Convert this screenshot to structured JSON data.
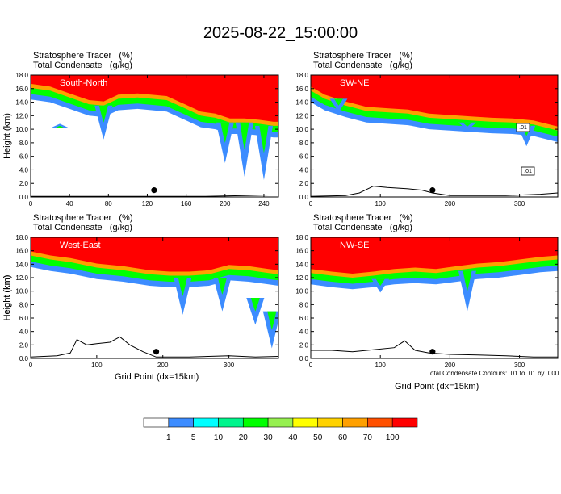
{
  "figure": {
    "title": "2025-08-22_15:00:00",
    "xtitle": "Grid Point (dx=15km)",
    "footnote": "Total Condensate Contours: .01 to .01 by .000",
    "panel_header_line1": "Stratosphere Tracer   (%)",
    "panel_header_line2": "Total Condensate   (g/kg)",
    "contour_labels": [
      ".01",
      ".01"
    ]
  },
  "chart_data": [
    {
      "type": "heatmap",
      "panel": "South-North",
      "label": "South-North",
      "ylabel": "Height (km)",
      "xlim": [
        0,
        255
      ],
      "ylim": [
        0,
        18
      ],
      "xticks": [
        0,
        40,
        80,
        120,
        160,
        200,
        240
      ],
      "yticks": [
        "0.0",
        "2.0",
        "4.0",
        "6.0",
        "8.0",
        "10.0",
        "12.0",
        "14.0",
        "16.0",
        "18.0"
      ],
      "tracer_base_km": [
        [
          0,
          15.6
        ],
        [
          20,
          15.2
        ],
        [
          40,
          14.2
        ],
        [
          60,
          13.2
        ],
        [
          75,
          13.0
        ],
        [
          90,
          14.0
        ],
        [
          110,
          14.2
        ],
        [
          140,
          13.8
        ],
        [
          160,
          12.5
        ],
        [
          175,
          11.5
        ],
        [
          190,
          11.2
        ],
        [
          205,
          10.5
        ],
        [
          220,
          10.5
        ],
        [
          235,
          10.3
        ],
        [
          250,
          10.0
        ],
        [
          255,
          10.0
        ]
      ],
      "intrusions": [
        {
          "x": 30,
          "top_km": 10.2,
          "bottom_km": 10.8
        },
        {
          "x": 75,
          "top_km": 13.5,
          "bottom_km": 8.5
        },
        {
          "x": 200,
          "top_km": 11.0,
          "bottom_km": 5.0
        },
        {
          "x": 220,
          "top_km": 11.0,
          "bottom_km": 3.0
        },
        {
          "x": 240,
          "top_km": 10.5,
          "bottom_km": 2.5
        }
      ],
      "terrain_km": [
        [
          0,
          0.1
        ],
        [
          60,
          0.1
        ],
        [
          120,
          0.1
        ],
        [
          180,
          0.1
        ],
        [
          220,
          0.2
        ],
        [
          245,
          0.3
        ],
        [
          255,
          0.3
        ]
      ],
      "marker": {
        "x": 127,
        "y_km": 1.0
      }
    },
    {
      "type": "heatmap",
      "panel": "SW-NE",
      "label": "SW-NE",
      "ylabel": "",
      "xlim": [
        0,
        355
      ],
      "ylim": [
        0,
        18
      ],
      "xticks": [
        0,
        100,
        200,
        300
      ],
      "yticks": [
        "0.0",
        "2.0",
        "4.0",
        "6.0",
        "8.0",
        "10.0",
        "12.0",
        "14.0",
        "16.0",
        "18.0"
      ],
      "tracer_base_km": [
        [
          0,
          15.2
        ],
        [
          20,
          14.0
        ],
        [
          50,
          13.0
        ],
        [
          80,
          12.2
        ],
        [
          110,
          12.0
        ],
        [
          140,
          11.8
        ],
        [
          170,
          11.2
        ],
        [
          200,
          11.0
        ],
        [
          230,
          10.8
        ],
        [
          260,
          10.6
        ],
        [
          290,
          10.5
        ],
        [
          320,
          10.2
        ],
        [
          355,
          9.3
        ]
      ],
      "intrusions": [
        {
          "x": 40,
          "top_km": 14.5,
          "bottom_km": 12.5
        },
        {
          "x": 225,
          "top_km": 11.0,
          "bottom_km": 9.8
        },
        {
          "x": 310,
          "top_km": 10.5,
          "bottom_km": 7.5
        }
      ],
      "terrain_km": [
        [
          0,
          0.1
        ],
        [
          50,
          0.2
        ],
        [
          70,
          0.6
        ],
        [
          90,
          1.6
        ],
        [
          110,
          1.4
        ],
        [
          140,
          1.2
        ],
        [
          160,
          1.0
        ],
        [
          175,
          0.6
        ],
        [
          200,
          0.2
        ],
        [
          280,
          0.2
        ],
        [
          330,
          0.4
        ],
        [
          355,
          0.6
        ]
      ],
      "marker": {
        "x": 175,
        "y_km": 1.0
      }
    },
    {
      "type": "heatmap",
      "panel": "West-East",
      "label": "West-East",
      "ylabel": "Height (km)",
      "xlim": [
        0,
        375
      ],
      "ylim": [
        0,
        18
      ],
      "xticks": [
        0,
        100,
        200,
        300
      ],
      "yticks": [
        "0.0",
        "2.0",
        "4.0",
        "6.0",
        "8.0",
        "10.0",
        "12.0",
        "14.0",
        "16.0",
        "18.0"
      ],
      "tracer_base_km": [
        [
          0,
          14.8
        ],
        [
          30,
          14.2
        ],
        [
          60,
          13.8
        ],
        [
          100,
          13.0
        ],
        [
          140,
          12.6
        ],
        [
          180,
          12.0
        ],
        [
          210,
          11.8
        ],
        [
          240,
          11.8
        ],
        [
          270,
          12.0
        ],
        [
          300,
          12.8
        ],
        [
          330,
          12.6
        ],
        [
          360,
          12.2
        ],
        [
          375,
          12.0
        ]
      ],
      "intrusions": [
        {
          "x": 230,
          "top_km": 12.0,
          "bottom_km": 6.5
        },
        {
          "x": 290,
          "top_km": 12.0,
          "bottom_km": 7.0
        },
        {
          "x": 340,
          "top_km": 9.0,
          "bottom_km": 5.0
        },
        {
          "x": 365,
          "top_km": 7.0,
          "bottom_km": 1.5
        }
      ],
      "terrain_km": [
        [
          0,
          0.2
        ],
        [
          40,
          0.4
        ],
        [
          60,
          0.8
        ],
        [
          70,
          2.8
        ],
        [
          85,
          2.0
        ],
        [
          100,
          2.2
        ],
        [
          120,
          2.4
        ],
        [
          135,
          3.2
        ],
        [
          150,
          2.0
        ],
        [
          170,
          1.0
        ],
        [
          190,
          0.2
        ],
        [
          240,
          0.2
        ],
        [
          300,
          0.4
        ],
        [
          340,
          0.2
        ],
        [
          375,
          0.3
        ]
      ],
      "marker": {
        "x": 190,
        "y_km": 1.0
      }
    },
    {
      "type": "heatmap",
      "panel": "NW-SE",
      "label": "NW-SE",
      "ylabel": "Height (km)",
      "xlim": [
        0,
        355
      ],
      "ylim": [
        0,
        18
      ],
      "xticks": [
        0,
        100,
        200,
        300
      ],
      "yticks": [
        "0.0",
        "2.0",
        "4.0",
        "6.0",
        "8.0",
        "10.0",
        "12.0",
        "14.0",
        "16.0",
        "18.0"
      ],
      "tracer_base_km": [
        [
          0,
          12.2
        ],
        [
          30,
          11.8
        ],
        [
          60,
          11.5
        ],
        [
          90,
          11.8
        ],
        [
          120,
          12.2
        ],
        [
          150,
          12.4
        ],
        [
          180,
          12.2
        ],
        [
          210,
          12.6
        ],
        [
          240,
          13.0
        ],
        [
          270,
          13.2
        ],
        [
          300,
          13.6
        ],
        [
          330,
          14.0
        ],
        [
          355,
          14.2
        ]
      ],
      "intrusions": [
        {
          "x": 100,
          "top_km": 11.8,
          "bottom_km": 9.8
        },
        {
          "x": 225,
          "top_km": 13.0,
          "bottom_km": 7.0
        }
      ],
      "terrain_km": [
        [
          0,
          1.2
        ],
        [
          30,
          1.2
        ],
        [
          60,
          1.0
        ],
        [
          90,
          1.3
        ],
        [
          120,
          1.6
        ],
        [
          135,
          2.6
        ],
        [
          150,
          1.2
        ],
        [
          170,
          0.8
        ],
        [
          200,
          0.6
        ],
        [
          240,
          0.5
        ],
        [
          280,
          0.4
        ],
        [
          320,
          0.2
        ],
        [
          355,
          0.2
        ]
      ],
      "marker": {
        "x": 175,
        "y_km": 1.0
      }
    }
  ],
  "colorbar": {
    "thresholds": [
      "1",
      "5",
      "10",
      "20",
      "30",
      "40",
      "50",
      "60",
      "70",
      "100"
    ],
    "colors": [
      "#ffffff",
      "#3c8cff",
      "#00ffff",
      "#00f58c",
      "#00ff00",
      "#96f050",
      "#ffff00",
      "#ffd200",
      "#ffa000",
      "#ff5000",
      "#ff0000"
    ]
  }
}
